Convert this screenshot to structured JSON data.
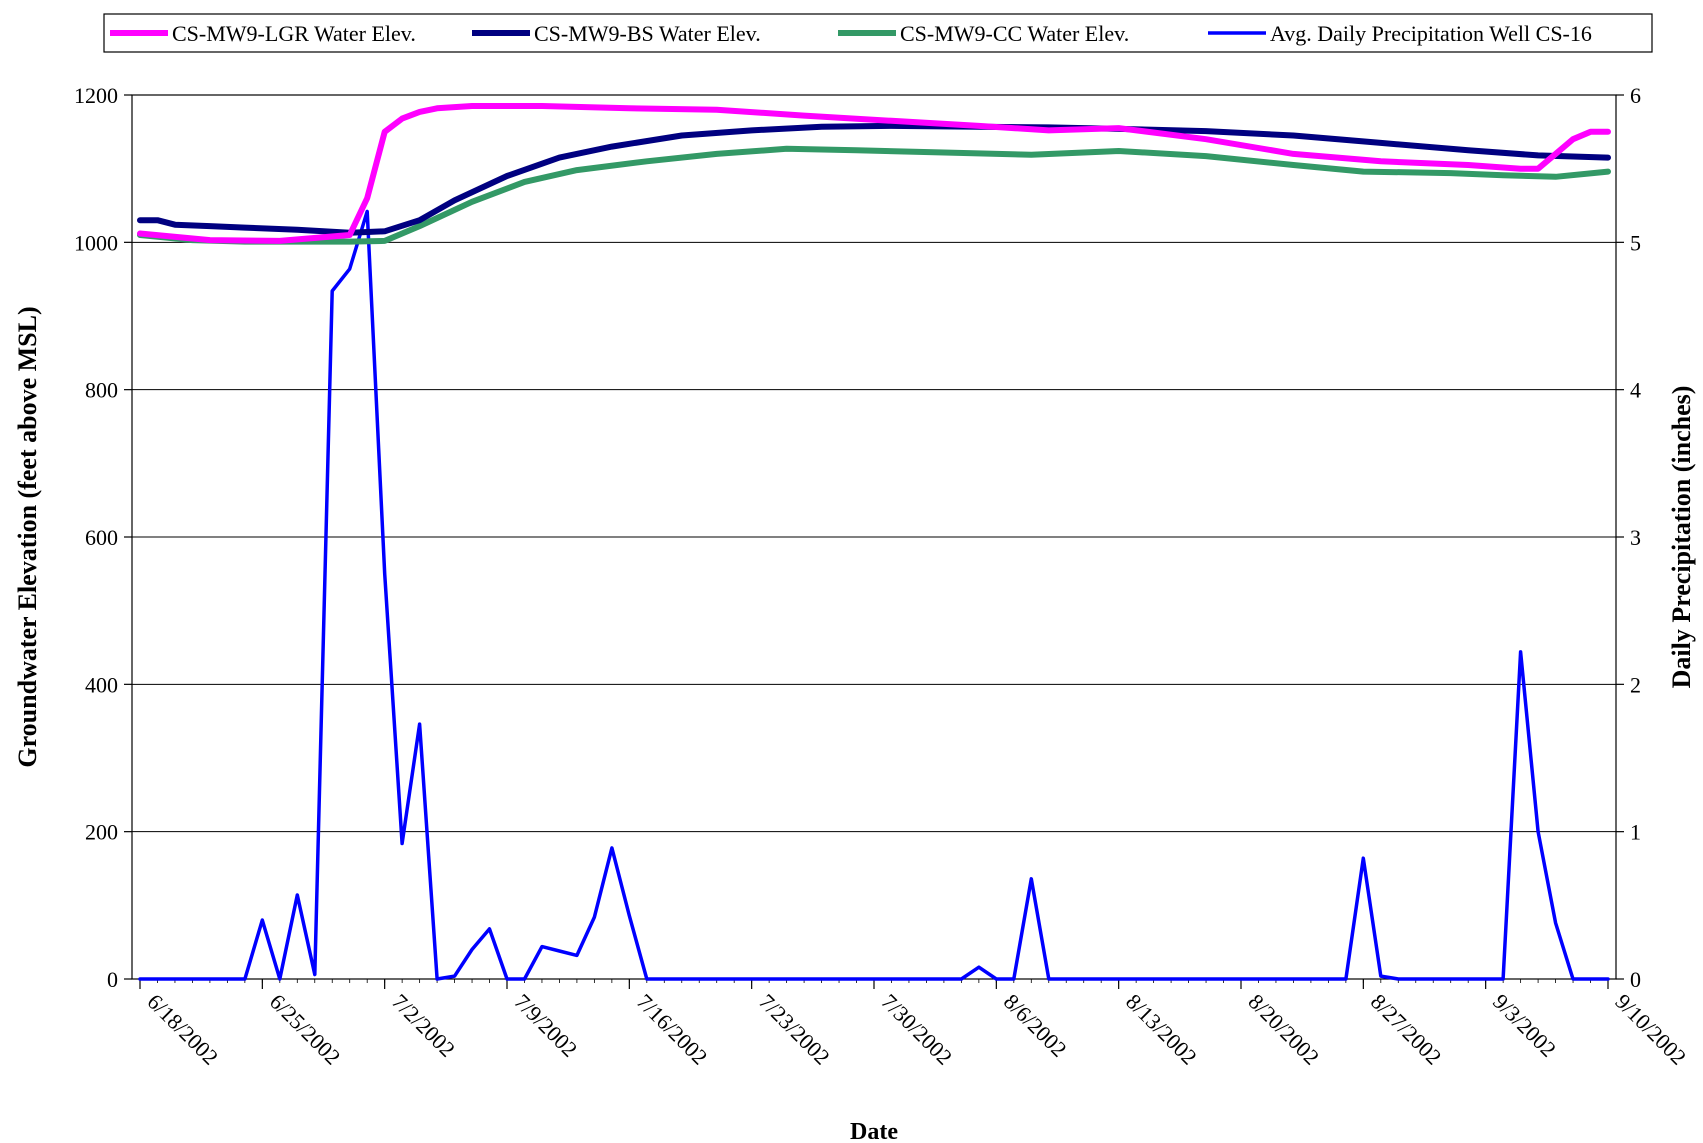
{
  "chart_data": {
    "type": "line",
    "xlabel": "Date",
    "ylabel": "Groundwater Elevation (feet above MSL)",
    "y2label": "Daily Precipitation (inches)",
    "ylim": [
      0,
      1200
    ],
    "y2lim": [
      0,
      6
    ],
    "yticks": [
      "0",
      "200",
      "400",
      "600",
      "800",
      "1000",
      "1200"
    ],
    "y2ticks": [
      "0",
      "1",
      "2",
      "3",
      "4",
      "5",
      "6"
    ],
    "xlim": [
      "2002-06-18",
      "2002-09-10"
    ],
    "xticks": [
      "6/18/2002",
      "6/25/2002",
      "7/2/2002",
      "7/9/2002",
      "7/16/2002",
      "7/23/2002",
      "7/30/2002",
      "8/6/2002",
      "8/13/2002",
      "8/20/2002",
      "8/27/2002",
      "9/3/2002",
      "9/10/2002"
    ],
    "grid": "horizontal",
    "legend_position": "top",
    "series": [
      {
        "name": "CS-MW9-LGR Water Elev.",
        "color": "#ff00ff",
        "axis": "left",
        "x": [
          "2002-06-18",
          "2002-06-22",
          "2002-06-26",
          "2002-06-30",
          "2002-07-01",
          "2002-07-02",
          "2002-07-03",
          "2002-07-04",
          "2002-07-05",
          "2002-07-07",
          "2002-07-11",
          "2002-07-16",
          "2002-07-21",
          "2002-07-26",
          "2002-07-31",
          "2002-08-05",
          "2002-08-09",
          "2002-08-13",
          "2002-08-18",
          "2002-08-23",
          "2002-08-28",
          "2002-09-02",
          "2002-09-05",
          "2002-09-06",
          "2002-09-07",
          "2002-09-08",
          "2002-09-09",
          "2002-09-10"
        ],
        "y": [
          1012,
          1003,
          1002,
          1010,
          1060,
          1150,
          1168,
          1177,
          1182,
          1185,
          1185,
          1182,
          1180,
          1172,
          1165,
          1158,
          1152,
          1155,
          1140,
          1120,
          1110,
          1105,
          1100,
          1100,
          1120,
          1140,
          1150,
          1150
        ]
      },
      {
        "name": "CS-MW9-BS Water Elev.",
        "color": "#000080",
        "axis": "left",
        "x": [
          "2002-06-18",
          "2002-06-19",
          "2002-06-20",
          "2002-06-22",
          "2002-06-24",
          "2002-06-27",
          "2002-06-30",
          "2002-07-02",
          "2002-07-04",
          "2002-07-06",
          "2002-07-09",
          "2002-07-12",
          "2002-07-15",
          "2002-07-19",
          "2002-07-23",
          "2002-07-27",
          "2002-07-31",
          "2002-08-05",
          "2002-08-09",
          "2002-08-13",
          "2002-08-18",
          "2002-08-23",
          "2002-08-28",
          "2002-09-02",
          "2002-09-06",
          "2002-09-10"
        ],
        "y": [
          1030,
          1030,
          1024,
          1022,
          1020,
          1017,
          1013,
          1015,
          1030,
          1057,
          1090,
          1115,
          1130,
          1145,
          1152,
          1157,
          1158,
          1157,
          1156,
          1154,
          1151,
          1145,
          1135,
          1125,
          1118,
          1115
        ]
      },
      {
        "name": "CS-MW9-CC Water Elev.",
        "color": "#339966",
        "axis": "left",
        "x": [
          "2002-06-18",
          "2002-06-21",
          "2002-06-24",
          "2002-06-30",
          "2002-07-02",
          "2002-07-04",
          "2002-07-07",
          "2002-07-10",
          "2002-07-13",
          "2002-07-17",
          "2002-07-21",
          "2002-07-25",
          "2002-07-29",
          "2002-08-03",
          "2002-08-08",
          "2002-08-13",
          "2002-08-18",
          "2002-08-23",
          "2002-08-27",
          "2002-09-01",
          "2002-09-04",
          "2002-09-07",
          "2002-09-10"
        ],
        "y": [
          1010,
          1003,
          1001,
          1001,
          1002,
          1022,
          1055,
          1082,
          1098,
          1110,
          1120,
          1127,
          1125,
          1122,
          1119,
          1124,
          1117,
          1105,
          1096,
          1094,
          1091,
          1089,
          1096
        ]
      },
      {
        "name": "Avg. Daily Precipitation Well CS-16",
        "color": "#0000ff",
        "axis": "right",
        "x": [
          "2002-06-18",
          "2002-06-19",
          "2002-06-20",
          "2002-06-21",
          "2002-06-22",
          "2002-06-23",
          "2002-06-24",
          "2002-06-25",
          "2002-06-26",
          "2002-06-27",
          "2002-06-28",
          "2002-06-29",
          "2002-06-30",
          "2002-07-01",
          "2002-07-02",
          "2002-07-03",
          "2002-07-04",
          "2002-07-05",
          "2002-07-06",
          "2002-07-07",
          "2002-07-08",
          "2002-07-09",
          "2002-07-10",
          "2002-07-11",
          "2002-07-12",
          "2002-07-13",
          "2002-07-14",
          "2002-07-15",
          "2002-07-16",
          "2002-07-17",
          "2002-08-01",
          "2002-08-02",
          "2002-08-03",
          "2002-08-04",
          "2002-08-05",
          "2002-08-06",
          "2002-08-07",
          "2002-08-08",
          "2002-08-09",
          "2002-08-26",
          "2002-08-27",
          "2002-08-28",
          "2002-08-29",
          "2002-09-04",
          "2002-09-05",
          "2002-09-06",
          "2002-09-07",
          "2002-09-08",
          "2002-09-09",
          "2002-09-10"
        ],
        "y": [
          0,
          0,
          0,
          0,
          0,
          0,
          0,
          0.4,
          0,
          0.57,
          0.03,
          4.67,
          4.82,
          5.21,
          2.75,
          0.92,
          1.73,
          0,
          0.02,
          0.2,
          0.34,
          0,
          0,
          0.22,
          0.19,
          0.16,
          0.42,
          0.89,
          0.43,
          0,
          0,
          0,
          0,
          0,
          0.08,
          0,
          0,
          0.68,
          0,
          0,
          0.82,
          0.02,
          0,
          0,
          2.22,
          1,
          0.38,
          0,
          0,
          0
        ]
      }
    ]
  }
}
